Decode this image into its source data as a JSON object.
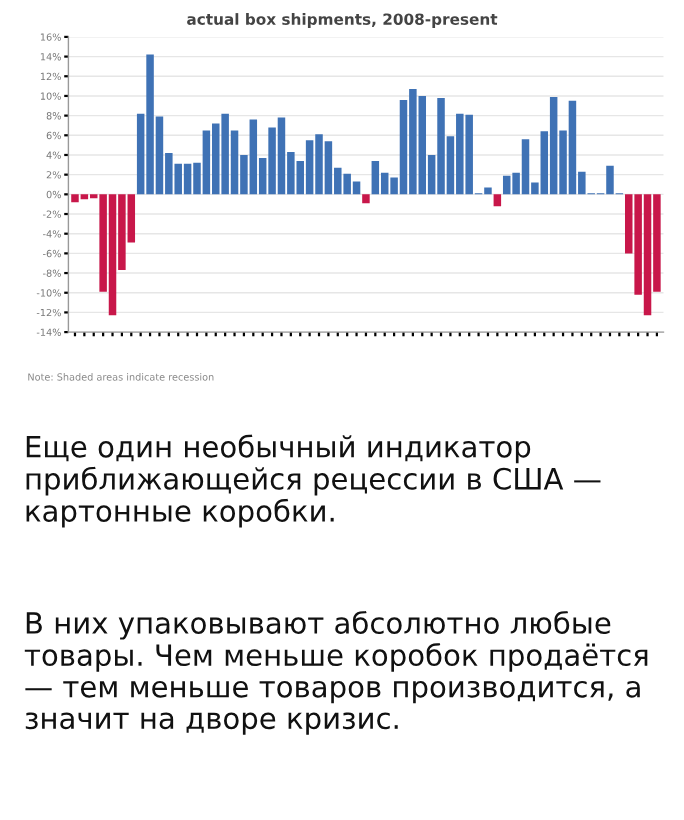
{
  "chart_data": {
    "type": "bar",
    "title": "actual box shipments, 2008-present",
    "categories": [
      null,
      null,
      null,
      null,
      null,
      null,
      null,
      null,
      null,
      null,
      null,
      null,
      null,
      null,
      null,
      null,
      null,
      null,
      null,
      null,
      null,
      null,
      null,
      null,
      null,
      null,
      null,
      null,
      null,
      null,
      null,
      null,
      null,
      null,
      null,
      null,
      null,
      null,
      null,
      null,
      null,
      null,
      null,
      null,
      null,
      null,
      null,
      null,
      null,
      null,
      null,
      null,
      null,
      null,
      null,
      null,
      null,
      null,
      null,
      null,
      null,
      null,
      null
    ],
    "values": [
      -0.8,
      -0.5,
      -0.4,
      -9.9,
      -12.3,
      -7.7,
      -4.9,
      8.2,
      14.2,
      7.9,
      4.2,
      3.1,
      3.1,
      3.2,
      6.5,
      7.2,
      8.2,
      6.5,
      4.0,
      7.6,
      3.7,
      6.8,
      7.8,
      4.3,
      3.4,
      5.5,
      6.1,
      5.4,
      2.7,
      2.1,
      1.3,
      -0.9,
      3.4,
      2.2,
      1.7,
      9.6,
      10.7,
      10.0,
      4.0,
      9.8,
      5.9,
      8.2,
      8.1,
      0.1,
      0.7,
      -1.2,
      1.9,
      2.2,
      5.6,
      1.2,
      6.4,
      9.9,
      6.5,
      9.5,
      2.3,
      0.1,
      0.1,
      2.9,
      0.1,
      -6.0,
      -10.2,
      -12.3,
      -9.9
    ],
    "colors": [
      "#c8174a",
      "#c8174a",
      "#c8174a",
      "#c8174a",
      "#c8174a",
      "#c8174a",
      "#c8174a",
      "#3f72b5",
      "#3f72b5",
      "#3f72b5",
      "#3f72b5",
      "#3f72b5",
      "#3f72b5",
      "#3f72b5",
      "#3f72b5",
      "#3f72b5",
      "#3f72b5",
      "#3f72b5",
      "#3f72b5",
      "#3f72b5",
      "#3f72b5",
      "#3f72b5",
      "#3f72b5",
      "#3f72b5",
      "#3f72b5",
      "#3f72b5",
      "#3f72b5",
      "#3f72b5",
      "#3f72b5",
      "#3f72b5",
      "#3f72b5",
      "#c8174a",
      "#3f72b5",
      "#3f72b5",
      "#3f72b5",
      "#3f72b5",
      "#3f72b5",
      "#3f72b5",
      "#3f72b5",
      "#3f72b5",
      "#3f72b5",
      "#3f72b5",
      "#3f72b5",
      "#3f72b5",
      "#3f72b5",
      "#c8174a",
      "#3f72b5",
      "#3f72b5",
      "#3f72b5",
      "#3f72b5",
      "#3f72b5",
      "#3f72b5",
      "#3f72b5",
      "#3f72b5",
      "#3f72b5",
      "#3f72b5",
      "#3f72b5",
      "#3f72b5",
      "#3f72b5",
      "#c8174a",
      "#c8174a",
      "#c8174a",
      "#c8174a"
    ],
    "ylim": [
      -14,
      16
    ],
    "yticks": [
      {
        "value": -14,
        "label": "-14%"
      },
      {
        "value": -12,
        "label": "-12%"
      },
      {
        "value": -10,
        "label": "-10%"
      },
      {
        "value": -8,
        "label": "-8%"
      },
      {
        "value": -6,
        "label": "-6%"
      },
      {
        "value": -4,
        "label": "-4%"
      },
      {
        "value": -2,
        "label": "-2%"
      },
      {
        "value": 0,
        "label": "0%"
      },
      {
        "value": 2,
        "label": "2%"
      },
      {
        "value": 4,
        "label": "4%"
      },
      {
        "value": 6,
        "label": "6%"
      },
      {
        "value": 8,
        "label": "8%"
      },
      {
        "value": 10,
        "label": "10%"
      },
      {
        "value": 12,
        "label": "12%"
      },
      {
        "value": 14,
        "label": "14%"
      },
      {
        "value": 16,
        "label": "16%"
      }
    ],
    "tick_labels": "y",
    "grid": "y",
    "annotations": [
      "Note: Shaded areas indicate recession",
      "Еще один необычный индикатор приближающейся рецессии в США — картонные коробки.",
      "В них упаковывают абсолютно любые товары. Чем меньше коробок продаётся — тем меньше товаров производится, а значит на дворе кризис."
    ]
  }
}
